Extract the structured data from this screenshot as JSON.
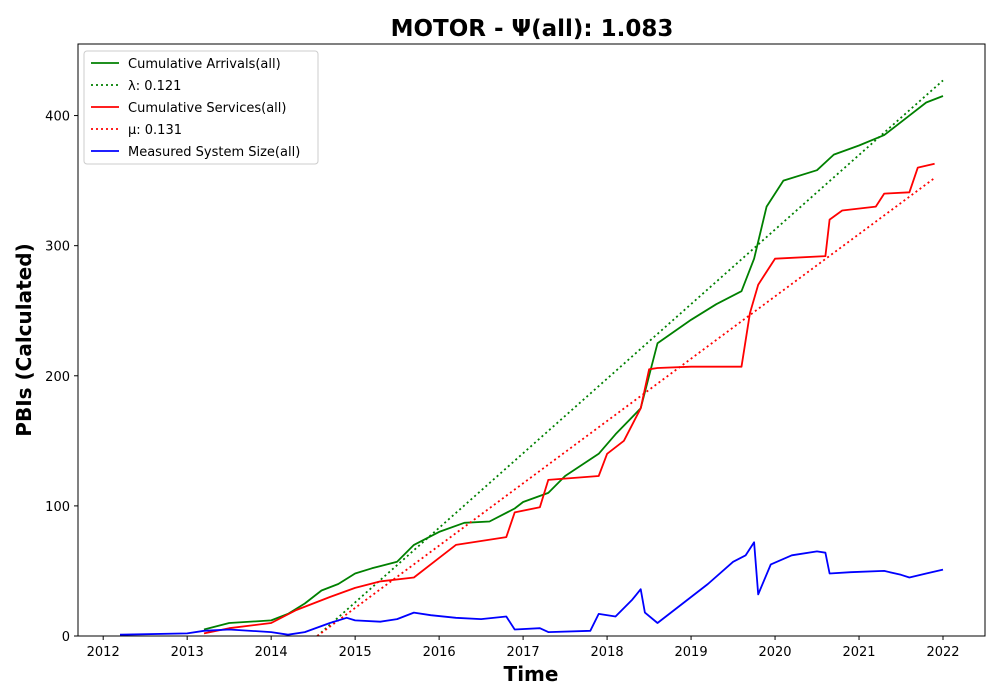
{
  "chart_data": {
    "type": "line",
    "title": "MOTOR -  Ψ(all): 1.083",
    "xlabel": "Time",
    "ylabel": "PBIs (Calculated)",
    "xlim": [
      2011.7,
      2022.5
    ],
    "ylim": [
      0,
      455
    ],
    "x_ticks": [
      2012,
      2013,
      2014,
      2015,
      2016,
      2017,
      2018,
      2019,
      2020,
      2021,
      2022
    ],
    "x_tick_labels": [
      "2012",
      "2013",
      "2014",
      "2015",
      "2016",
      "2017",
      "2018",
      "2019",
      "2020",
      "2021",
      "2022"
    ],
    "y_ticks": [
      0,
      100,
      200,
      300,
      400
    ],
    "y_tick_labels": [
      "0",
      "100",
      "200",
      "300",
      "400"
    ],
    "grid": false,
    "legend_position": "upper-left",
    "series": [
      {
        "name": "Cumulative Arrivals(all)",
        "color": "#008000",
        "style": "solid",
        "x": [
          2013.2,
          2013.5,
          2014.0,
          2014.2,
          2014.4,
          2014.6,
          2014.8,
          2015.0,
          2015.2,
          2015.5,
          2015.7,
          2016.0,
          2016.3,
          2016.6,
          2016.9,
          2017.0,
          2017.3,
          2017.5,
          2017.9,
          2018.1,
          2018.4,
          2018.6,
          2019.0,
          2019.3,
          2019.6,
          2019.75,
          2019.9,
          2020.1,
          2020.5,
          2020.7,
          2021.0,
          2021.3,
          2021.6,
          2021.8,
          2022.0
        ],
        "y": [
          5,
          10,
          12,
          17,
          25,
          35,
          40,
          48,
          52,
          57,
          70,
          80,
          87,
          88,
          98,
          103,
          110,
          123,
          140,
          155,
          175,
          225,
          243,
          255,
          265,
          290,
          330,
          350,
          358,
          370,
          377,
          385,
          400,
          410,
          415
        ]
      },
      {
        "name": "λ: 0.121",
        "color": "#008000",
        "style": "dotted",
        "x": [
          2014.55,
          2022.0
        ],
        "y": [
          0,
          427
        ]
      },
      {
        "name": "Cumulative Services(all)",
        "color": "#ff0000",
        "style": "solid",
        "x": [
          2013.2,
          2013.5,
          2014.0,
          2014.3,
          2014.7,
          2015.0,
          2015.3,
          2015.7,
          2016.0,
          2016.2,
          2016.8,
          2016.9,
          2017.2,
          2017.3,
          2017.9,
          2018.0,
          2018.2,
          2018.4,
          2018.5,
          2018.6,
          2019.0,
          2019.6,
          2019.7,
          2019.8,
          2020.0,
          2020.6,
          2020.65,
          2020.8,
          2021.2,
          2021.3,
          2021.6,
          2021.7,
          2021.9
        ],
        "y": [
          2,
          6,
          10,
          20,
          30,
          37,
          42,
          45,
          60,
          70,
          76,
          95,
          99,
          120,
          123,
          140,
          150,
          175,
          205,
          206,
          207,
          207,
          248,
          270,
          290,
          292,
          320,
          327,
          330,
          340,
          341,
          360,
          363
        ]
      },
      {
        "name": "μ: 0.131",
        "color": "#ff0000",
        "style": "dotted",
        "x": [
          2014.55,
          2021.9
        ],
        "y": [
          0,
          352
        ]
      },
      {
        "name": "Measured System Size(all)",
        "color": "#0000ff",
        "style": "solid",
        "x": [
          2012.2,
          2013.0,
          2013.2,
          2013.5,
          2014.0,
          2014.2,
          2014.4,
          2014.7,
          2014.9,
          2015.0,
          2015.3,
          2015.5,
          2015.7,
          2015.9,
          2016.2,
          2016.5,
          2016.8,
          2016.9,
          2017.2,
          2017.3,
          2017.8,
          2017.9,
          2018.1,
          2018.3,
          2018.4,
          2018.45,
          2018.6,
          2018.9,
          2019.2,
          2019.5,
          2019.65,
          2019.75,
          2019.8,
          2019.95,
          2020.2,
          2020.5,
          2020.6,
          2020.65,
          2020.9,
          2021.3,
          2021.5,
          2021.6,
          2021.8,
          2022.0
        ],
        "y": [
          1,
          2,
          4,
          5,
          3,
          1,
          3,
          10,
          14,
          12,
          11,
          13,
          18,
          16,
          14,
          13,
          15,
          5,
          6,
          3,
          4,
          17,
          15,
          28,
          36,
          18,
          10,
          25,
          40,
          57,
          62,
          72,
          32,
          55,
          62,
          65,
          64,
          48,
          49,
          50,
          47,
          45,
          48,
          51
        ]
      }
    ]
  }
}
